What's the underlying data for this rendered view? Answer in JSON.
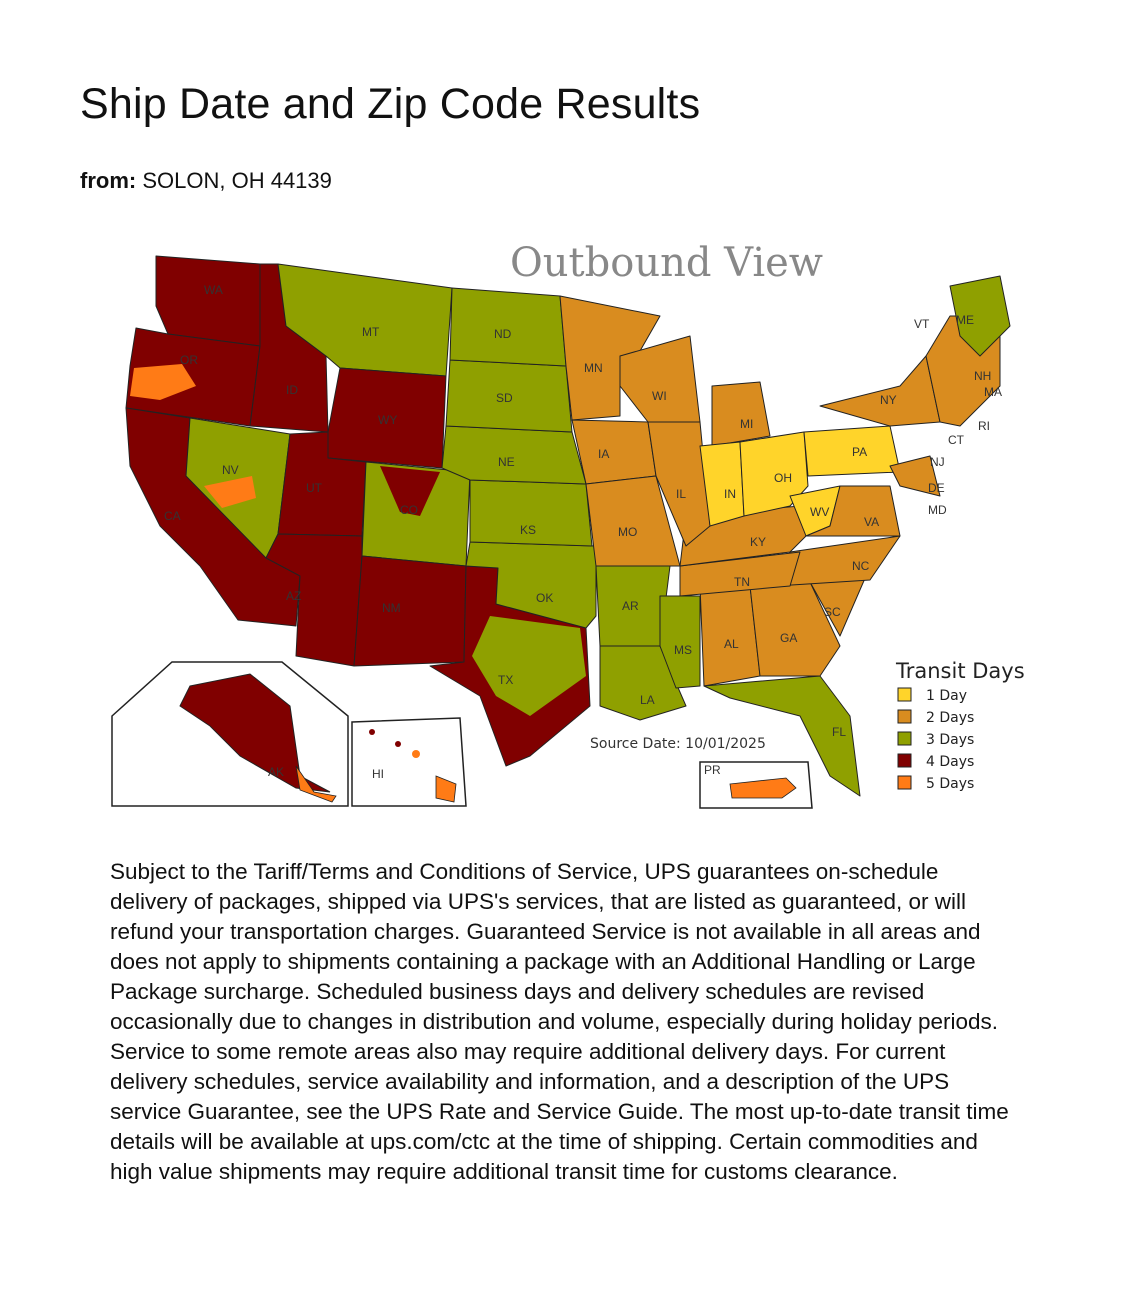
{
  "page": {
    "title": "Ship Date and Zip Code Results",
    "from_label": "from:",
    "from_value": "SOLON, OH 44139"
  },
  "map": {
    "title": "Outbound View",
    "source_date": "Source Date: 10/01/2025",
    "legend": {
      "title": "Transit Days",
      "items": [
        {
          "label": "1 Day",
          "color": "#ffd42a"
        },
        {
          "label": "2 Days",
          "color": "#d98c1f"
        },
        {
          "label": "3 Days",
          "color": "#8fa000"
        },
        {
          "label": "4 Days",
          "color": "#800000"
        },
        {
          "label": "5 Days",
          "color": "#ff7b16"
        }
      ]
    },
    "state_labels": {
      "WA": "WA",
      "OR": "OR",
      "CA": "CA",
      "NV": "NV",
      "ID": "ID",
      "MT": "MT",
      "WY": "WY",
      "UT": "UT",
      "CO": "CO",
      "AZ": "AZ",
      "NM": "NM",
      "TX": "TX",
      "OK": "OK",
      "KS": "KS",
      "NE": "NE",
      "SD": "SD",
      "ND": "ND",
      "MN": "MN",
      "IA": "IA",
      "MO": "MO",
      "AR": "AR",
      "LA": "LA",
      "MS": "MS",
      "AL": "AL",
      "GA": "GA",
      "FL": "FL",
      "SC": "SC",
      "NC": "NC",
      "TN": "TN",
      "KY": "KY",
      "IL": "IL",
      "WI": "WI",
      "MI": "MI",
      "IN": "IN",
      "OH": "OH",
      "WV": "WV",
      "VA": "VA",
      "PA": "PA",
      "NY": "NY",
      "VT": "VT",
      "ME": "ME",
      "NH": "NH",
      "MA": "MA",
      "RI": "RI",
      "CT": "CT",
      "NJ": "NJ",
      "DE": "DE",
      "MD": "MD",
      "AK": "AK",
      "HI": "HI",
      "PR": "PR"
    }
  },
  "disclaimer": "Subject to the Tariff/Terms and Conditions of Service, UPS guarantees on-schedule delivery of packages, shipped via UPS's services, that are listed as guaranteed, or will refund your transportation charges. Guaranteed Service is not available in all areas and does not apply to shipments containing a package with an Additional Handling or Large Package surcharge. Scheduled business days and delivery schedules are revised occasionally due to changes in distribution and volume, especially during holiday periods. Service to some remote areas also may require additional delivery days. For current delivery schedules, service availability and information, and a description of the UPS service Guarantee, see the UPS Rate and Service Guide. The most up-to-date transit time details will be available at ups.com/ctc at the time of shipping. Certain commodities and high value shipments may require additional transit time for customs clearance."
}
